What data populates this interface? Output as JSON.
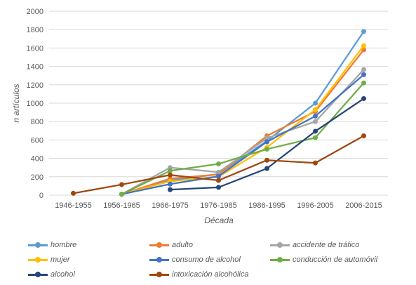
{
  "chart_data": {
    "type": "line",
    "title": "",
    "xlabel": "Década",
    "ylabel": "n artículos",
    "categories": [
      "1946-1955",
      "1956-1965",
      "1966-1975",
      "1976-1985",
      "1986-1995",
      "1996-2005",
      "2006-2015"
    ],
    "yticks": [
      "0",
      "200",
      "400",
      "600",
      "800",
      "1000",
      "1200",
      "1400",
      "1600",
      "1800",
      "2000"
    ],
    "ylim": [
      0,
      2000
    ],
    "grid": true,
    "legend_position": "bottom",
    "series": [
      {
        "name": "hombre",
        "color": "#5B9BD5",
        "values": [
          null,
          10,
          160,
          230,
          590,
          1000,
          1780
        ]
      },
      {
        "name": "adulto",
        "color": "#ED7D31",
        "values": [
          null,
          10,
          180,
          225,
          645,
          910,
          1580
        ]
      },
      {
        "name": "accidente de tráfico",
        "color": "#A5A5A5",
        "values": [
          null,
          10,
          300,
          250,
          620,
          800,
          1365
        ]
      },
      {
        "name": "mujer",
        "color": "#FFC000",
        "values": [
          null,
          10,
          150,
          200,
          520,
          930,
          1625
        ]
      },
      {
        "name": "consumo de alcohol",
        "color": "#4472C4",
        "values": [
          null,
          10,
          120,
          205,
          580,
          860,
          1310
        ]
      },
      {
        "name": "conducción de automóvil",
        "color": "#70AD47",
        "values": [
          null,
          10,
          265,
          340,
          500,
          625,
          1220
        ]
      },
      {
        "name": "alcohol",
        "color": "#264478",
        "values": [
          null,
          null,
          60,
          85,
          290,
          695,
          1050
        ]
      },
      {
        "name": "intoxicación alcohólica",
        "color": "#9E480E",
        "values": [
          20,
          115,
          220,
          160,
          380,
          350,
          645
        ]
      }
    ]
  }
}
